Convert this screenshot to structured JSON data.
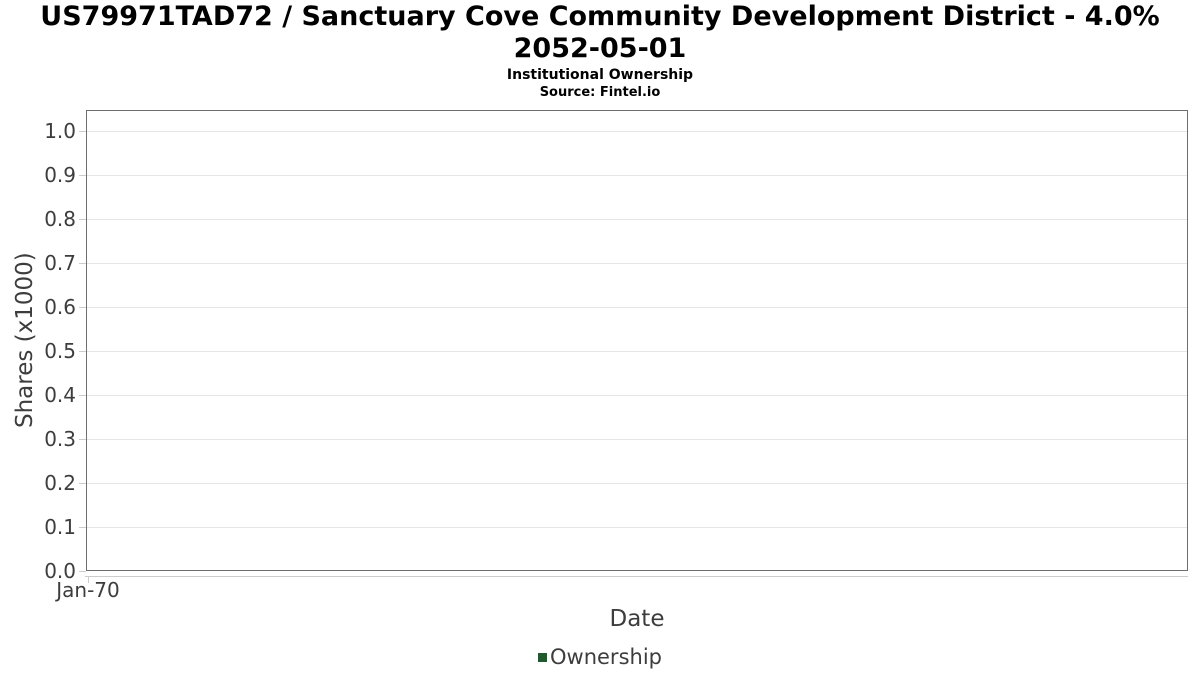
{
  "chart_data": {
    "type": "line",
    "title": "US79971TAD72 / Sanctuary Cove Community Development District - 4.0% 2052-05-01",
    "subtitle": "Institutional Ownership",
    "source": "Source: Fintel.io",
    "xlabel": "Date",
    "ylabel": "Shares (x1000)",
    "x_tick_labels": [
      "Jan-70"
    ],
    "y_ticks": [
      0.0,
      0.1,
      0.2,
      0.3,
      0.4,
      0.5,
      0.6,
      0.7,
      0.8,
      0.9,
      1.0
    ],
    "ylim": [
      0.0,
      1.048
    ],
    "grid": true,
    "legend_position": "bottom",
    "series": [
      {
        "name": "Ownership",
        "color": "#20592e",
        "x": [],
        "values": []
      }
    ]
  },
  "colors": {
    "plot_border": "#6e6e6e",
    "gridline": "#e6e6e6",
    "tick": "#cccccc",
    "axis_text": "#3d3d3d",
    "title_text": "#000000",
    "legend_marker": "#20592e"
  }
}
